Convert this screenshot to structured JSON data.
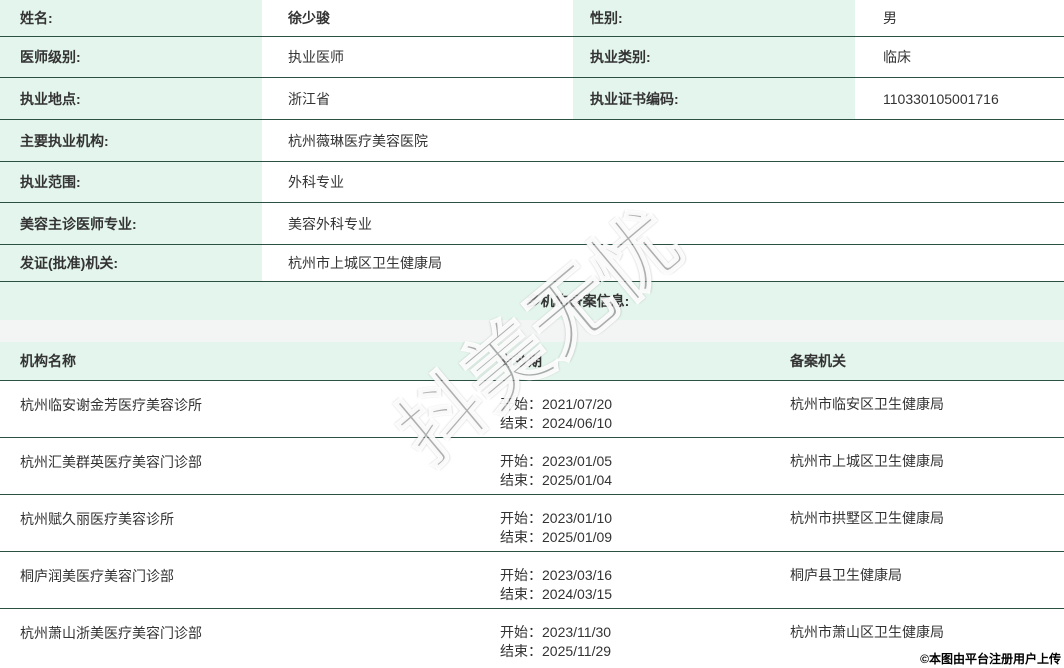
{
  "colors": {
    "divider": "#2b5143",
    "label_background": "#e3f5ec",
    "gap_background": "#f3f5f4",
    "text": "#333333"
  },
  "fields": {
    "name": {
      "label": "姓名:",
      "value": "徐少骏"
    },
    "gender": {
      "label": "性别:",
      "value": "男"
    },
    "doctor_level": {
      "label": "医师级别:",
      "value": "执业医师"
    },
    "practice_category": {
      "label": "执业类别:",
      "value": "临床"
    },
    "practice_location": {
      "label": "执业地点:",
      "value": "浙江省"
    },
    "certificate_no": {
      "label": "执业证书编码:",
      "value": "110330105001716"
    },
    "main_institution": {
      "label": "主要执业机构:",
      "value": "杭州薇琳医疗美容医院"
    },
    "practice_scope": {
      "label": "执业范围:",
      "value": "外科专业"
    },
    "cosmetic_specialty": {
      "label": "美容主诊医师专业:",
      "value": "美容外科专业"
    },
    "issuing_authority": {
      "label": "发证(批准)机关:",
      "value": "杭州市上城区卫生健康局"
    }
  },
  "multi_org_section": {
    "title": "多机构备案信息:",
    "columns": {
      "name": "机构名称",
      "validity": "有效期",
      "authority": "备案机关"
    },
    "start_prefix": "开始：",
    "end_prefix": "结束：",
    "rows": [
      {
        "name": "杭州临安谢金芳医疗美容诊所",
        "start": "2021/07/20",
        "end": "2024/06/10",
        "authority": "杭州市临安区卫生健康局"
      },
      {
        "name": "杭州汇美群英医疗美容门诊部",
        "start": "2023/01/05",
        "end": "2025/01/04",
        "authority": "杭州市上城区卫生健康局"
      },
      {
        "name": "杭州赋久丽医疗美容诊所",
        "start": "2023/01/10",
        "end": "2025/01/09",
        "authority": "杭州市拱墅区卫生健康局"
      },
      {
        "name": "桐庐润美医疗美容门诊部",
        "start": "2023/03/16",
        "end": "2024/03/15",
        "authority": "桐庐县卫生健康局"
      },
      {
        "name": "杭州萧山浙美医疗美容门诊部",
        "start": "2023/11/30",
        "end": "2025/11/29",
        "authority": "杭州市萧山区卫生健康局"
      }
    ]
  },
  "watermark": {
    "text": "抖美无忧"
  },
  "footer": {
    "copyright": "©本图由平台注册用户上传"
  }
}
